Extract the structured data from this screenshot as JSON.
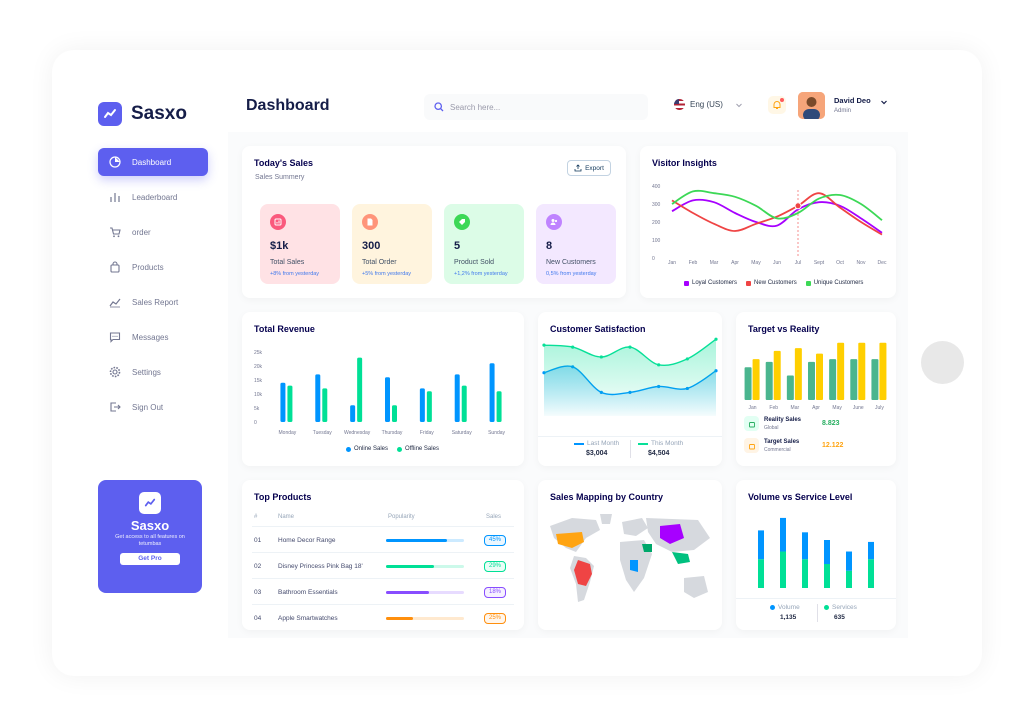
{
  "app": {
    "name": "Sasxo",
    "page_title": "Dashboard"
  },
  "search": {
    "placeholder": "Search here..."
  },
  "language": {
    "label": "Eng (US)"
  },
  "user": {
    "name": "David Deo",
    "role": "Admin"
  },
  "sidebar": {
    "items": [
      {
        "label": "Dashboard",
        "icon": "pie-chart-icon",
        "active": true
      },
      {
        "label": "Leaderboard",
        "icon": "bar-chart-icon"
      },
      {
        "label": "order",
        "icon": "cart-icon"
      },
      {
        "label": "Products",
        "icon": "shopping-bag-icon"
      },
      {
        "label": "Sales Report",
        "icon": "line-chart-icon"
      },
      {
        "label": "Messages",
        "icon": "message-icon"
      },
      {
        "label": "Settings",
        "icon": "gear-icon"
      },
      {
        "label": "Sign Out",
        "icon": "sign-out-icon"
      }
    ]
  },
  "promo": {
    "title": "Sasxo",
    "text": "Get access to all features on tetumbas",
    "button": "Get Pro"
  },
  "todays_sales": {
    "title": "Today's Sales",
    "subtitle": "Sales Summery",
    "export_label": "Export",
    "kpis": [
      {
        "value": "$1k",
        "label": "Total Sales",
        "change": "+8% from yesterday",
        "bg": "#ffe2e5",
        "icon_bg": "#fa5a7d",
        "icon": "chart-icon"
      },
      {
        "value": "300",
        "label": "Total Order",
        "change": "+5% from yesterday",
        "bg": "#fff4de",
        "icon_bg": "#ff947a",
        "icon": "document-icon"
      },
      {
        "value": "5",
        "label": "Product Sold",
        "change": "+1,2% from yesterday",
        "bg": "#dcfce7",
        "icon_bg": "#3cd856",
        "icon": "tag-icon"
      },
      {
        "value": "8",
        "label": "New Customers",
        "change": "0,5% from yesterday",
        "bg": "#f3e8ff",
        "icon_bg": "#bf83ff",
        "icon": "users-icon"
      }
    ]
  },
  "visitor_insights": {
    "title": "Visitor Insights",
    "legend": [
      "Loyal Customers",
      "New Customers",
      "Unique Customers"
    ]
  },
  "total_revenue": {
    "title": "Total Revenue",
    "legend": [
      "Online Sales",
      "Offline Sales"
    ]
  },
  "customer_satisfaction": {
    "title": "Customer Satisfaction",
    "last_month_label": "Last Month",
    "last_month_value": "$3,004",
    "this_month_label": "This Month",
    "this_month_value": "$4,504"
  },
  "target_vs_reality": {
    "title": "Target vs Reality",
    "rows": [
      {
        "name": "Reality Sales",
        "sub": "Global",
        "value": "8.823",
        "color": "#27ae60",
        "icon": "bag-icon"
      },
      {
        "name": "Target Sales",
        "sub": "Commercial",
        "value": "12.122",
        "color": "#ffa412",
        "icon": "ticket-icon"
      }
    ]
  },
  "top_products": {
    "title": "Top Products",
    "headers": [
      "#",
      "Name",
      "Popularity",
      "Sales"
    ],
    "rows": [
      {
        "num": "01",
        "name": "Home Decor Range",
        "popularity": 0.78,
        "sales": "45%",
        "color": "#0095ff"
      },
      {
        "num": "02",
        "name": "Disney Princess Pink Bag 18'",
        "popularity": 0.62,
        "sales": "29%",
        "color": "#00e096"
      },
      {
        "num": "03",
        "name": "Bathroom Essentials",
        "popularity": 0.55,
        "sales": "18%",
        "color": "#884dff"
      },
      {
        "num": "04",
        "name": "Apple Smartwatches",
        "popularity": 0.35,
        "sales": "25%",
        "color": "#ff8f0d"
      }
    ]
  },
  "sales_mapping": {
    "title": "Sales Mapping by Country"
  },
  "volume_service": {
    "title": "Volume vs Service Level",
    "volume_label": "Volume",
    "volume_value": "1,135",
    "services_label": "Services",
    "services_value": "635"
  },
  "colors": {
    "primary": "#5d5fef",
    "blue": "#0095ff",
    "green": "#00e096",
    "yellow": "#ffcf00",
    "teal": "#4ab58e"
  },
  "chart_data": [
    {
      "type": "line",
      "title": "Visitor Insights",
      "categories": [
        "Jan",
        "Feb",
        "Mar",
        "Apr",
        "May",
        "Jun",
        "Jul",
        "Sept",
        "Oct",
        "Nov",
        "Dec"
      ],
      "ylim": [
        0,
        400
      ],
      "yticks": [
        0,
        100,
        200,
        300,
        400
      ],
      "series": [
        {
          "name": "Loyal Customers",
          "color": "#a700ff",
          "values": [
            260,
            320,
            310,
            250,
            200,
            180,
            270,
            310,
            290,
            220,
            140
          ]
        },
        {
          "name": "New Customers",
          "color": "#ef4444",
          "values": [
            320,
            250,
            190,
            150,
            190,
            230,
            290,
            360,
            280,
            200,
            130
          ]
        },
        {
          "name": "Unique Customers",
          "color": "#3cd856",
          "values": [
            300,
            370,
            360,
            340,
            290,
            220,
            250,
            330,
            350,
            300,
            210
          ]
        }
      ]
    },
    {
      "type": "bar",
      "title": "Total Revenue",
      "categories": [
        "Monday",
        "Tuesday",
        "Wednesday",
        "Thursday",
        "Friday",
        "Saturday",
        "Sunday"
      ],
      "ylim": [
        0,
        25
      ],
      "yticks": [
        "0",
        "5k",
        "10k",
        "15k",
        "20k",
        "25k"
      ],
      "series": [
        {
          "name": "Online Sales",
          "color": "#0095ff",
          "values": [
            14,
            17,
            6,
            16,
            12,
            17,
            21
          ]
        },
        {
          "name": "Offline Sales",
          "color": "#00e096",
          "values": [
            13,
            12,
            23,
            6,
            11,
            13,
            11
          ]
        }
      ]
    },
    {
      "type": "area",
      "title": "Customer Satisfaction",
      "x": [
        1,
        2,
        3,
        4,
        5,
        6,
        7
      ],
      "ylim": [
        0,
        5
      ],
      "series": [
        {
          "name": "Last Month",
          "color": "#0095ff",
          "values": [
            2.2,
            2.5,
            1.2,
            1.2,
            1.5,
            1.4,
            2.3
          ]
        },
        {
          "name": "This Month",
          "color": "#07e098",
          "values": [
            3.6,
            3.5,
            3.0,
            3.5,
            2.6,
            2.9,
            3.9
          ]
        }
      ]
    },
    {
      "type": "bar",
      "title": "Target vs Reality",
      "categories": [
        "Jan",
        "Feb",
        "Mar",
        "Apr",
        "May",
        "June",
        "July"
      ],
      "series": [
        {
          "name": "Reality Sales",
          "color": "#4ab58e",
          "values": [
            6,
            7,
            4.5,
            7,
            7.5,
            7.5,
            7.5
          ]
        },
        {
          "name": "Target Sales",
          "color": "#ffcf00",
          "values": [
            7.5,
            9,
            9.5,
            8.5,
            10.5,
            10.5,
            10.5
          ]
        }
      ]
    },
    {
      "type": "bar",
      "title": "Volume vs Service Level",
      "categories": [
        "1",
        "2",
        "3",
        "4",
        "5",
        "6"
      ],
      "series": [
        {
          "name": "Volume",
          "color": "#0095ff",
          "values": [
            30,
            35,
            28,
            25,
            20,
            18
          ]
        },
        {
          "name": "Services",
          "color": "#00e096",
          "values": [
            30,
            38,
            30,
            25,
            18,
            30
          ]
        }
      ]
    }
  ]
}
